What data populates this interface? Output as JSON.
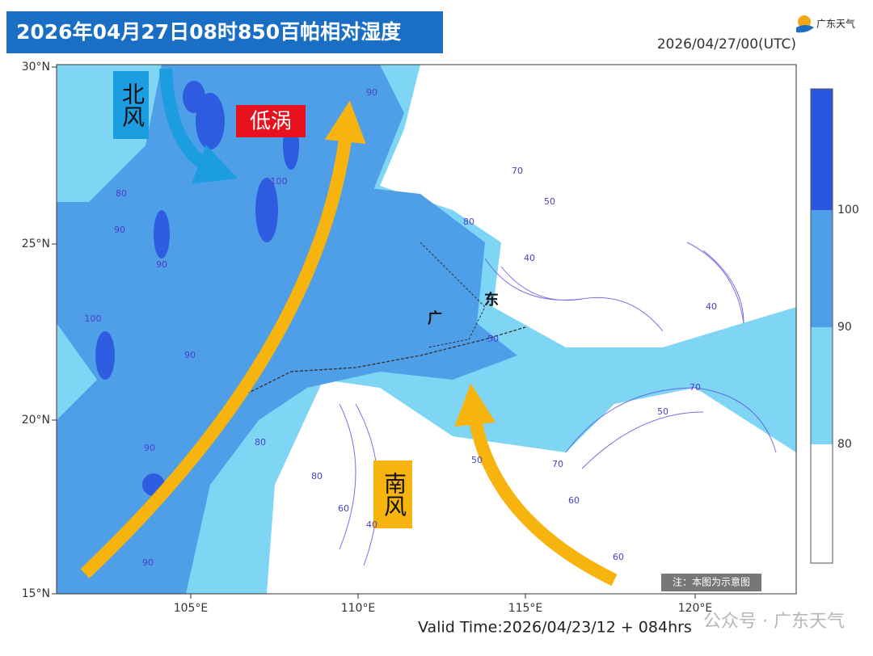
{
  "header": {
    "title": "2026年04月27日08时850百帕相对湿度",
    "brand": "广东天气",
    "init_time": "2026/04/27/00(UTC)"
  },
  "map": {
    "lat_labels": [
      "30°N",
      "25°N",
      "20°N",
      "15°N"
    ],
    "lon_labels": [
      "105°E",
      "110°E",
      "115°E",
      "120°E"
    ],
    "annotations": {
      "north_wind": "北风",
      "low_vortex": "低涡",
      "south_wind": "南风",
      "guang": "广",
      "dong": "东"
    },
    "contour_labels": [
      "90",
      "80",
      "100",
      "90",
      "90",
      "100",
      "90",
      "80",
      "90",
      "90",
      "80",
      "70",
      "50",
      "40",
      "50",
      "70",
      "60",
      "40",
      "80",
      "60",
      "50",
      "40",
      "70",
      "50",
      "60"
    ],
    "note": "注：本图为示意图"
  },
  "colorbar": {
    "labels": [
      "100",
      "90",
      "80"
    ]
  },
  "footer": {
    "valid_time": "Valid Time:2026/04/23/12 + 084hrs",
    "watermark": "公众号 · 广东天气"
  }
}
